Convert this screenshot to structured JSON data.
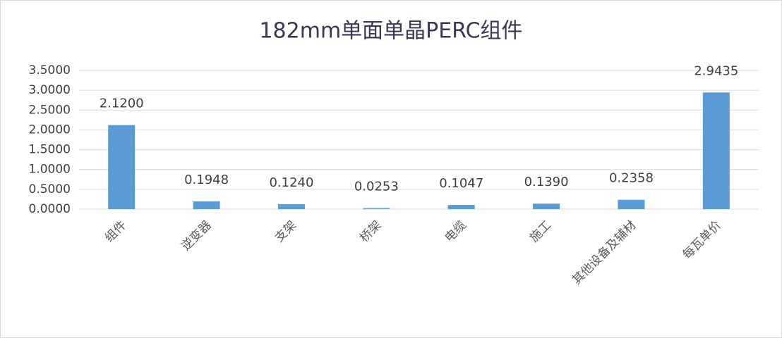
{
  "chart_data": {
    "type": "bar",
    "title": "182mm单面单晶PERC组件",
    "categories": [
      "组件",
      "逆变器",
      "支架",
      "桥架",
      "电缆",
      "施工",
      "其他设备及辅材",
      "每瓦单价"
    ],
    "values": [
      2.12,
      0.1948,
      0.124,
      0.0253,
      0.1047,
      0.139,
      0.2358,
      2.9435
    ],
    "value_labels": [
      "2.1200",
      "0.1948",
      "0.1240",
      "0.0253",
      "0.1047",
      "0.1390",
      "0.2358",
      "2.9435"
    ],
    "color": "#5b9bd5",
    "ylim": [
      0,
      3.5
    ],
    "yticks": [
      {
        "value": 0,
        "label": "0.0000"
      },
      {
        "value": 0.5,
        "label": "0.5000"
      },
      {
        "value": 1,
        "label": "1.0000"
      },
      {
        "value": 1.5,
        "label": "1.5000"
      },
      {
        "value": 2,
        "label": "2.0000"
      },
      {
        "value": 2.5,
        "label": "2.5000"
      },
      {
        "value": 3,
        "label": "3.0000"
      },
      {
        "value": 3.5,
        "label": "3.5000"
      }
    ],
    "grid": true
  }
}
